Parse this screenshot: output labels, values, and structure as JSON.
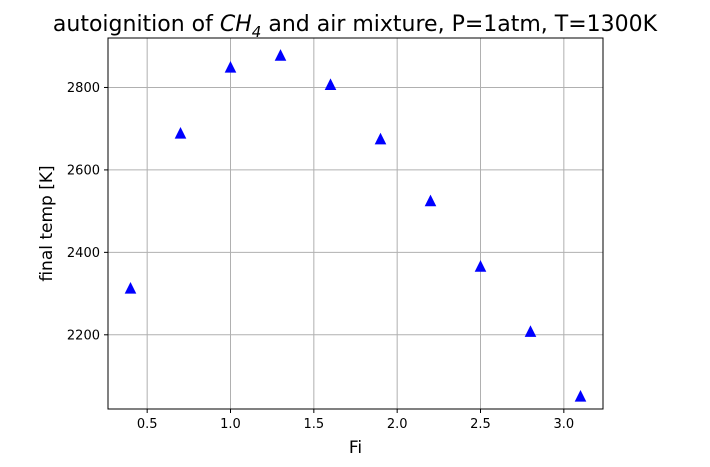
{
  "chart_data": {
    "type": "scatter",
    "title": "autoignition of CH4 and air mixture, P=1atm, T=1300K",
    "title_parts": {
      "prefix": "autoignition of ",
      "species_main": "CH",
      "species_sub": "4",
      "suffix": " and air mixture, P=1atm, T=1300K"
    },
    "xlabel": "Fi",
    "ylabel": "final temp [K]",
    "xlim": [
      0.265,
      3.235
    ],
    "ylim": [
      2020,
      2920
    ],
    "xticks": [
      0.5,
      1.0,
      1.5,
      2.0,
      2.5,
      3.0
    ],
    "xtick_labels": [
      "0.5",
      "1.0",
      "1.5",
      "2.0",
      "2.5",
      "3.0"
    ],
    "yticks": [
      2200,
      2400,
      2600,
      2800
    ],
    "ytick_labels": [
      "2200",
      "2400",
      "2600",
      "2800"
    ],
    "grid": true,
    "marker": "triangle-up",
    "color": "#0000ff",
    "series": [
      {
        "x": [
          0.4,
          0.7,
          1.0,
          1.3,
          1.6,
          1.9,
          2.2,
          2.5,
          2.8,
          3.1
        ],
        "y": [
          2312,
          2688,
          2848,
          2877,
          2806,
          2674,
          2524,
          2365,
          2207,
          2050
        ]
      }
    ]
  }
}
